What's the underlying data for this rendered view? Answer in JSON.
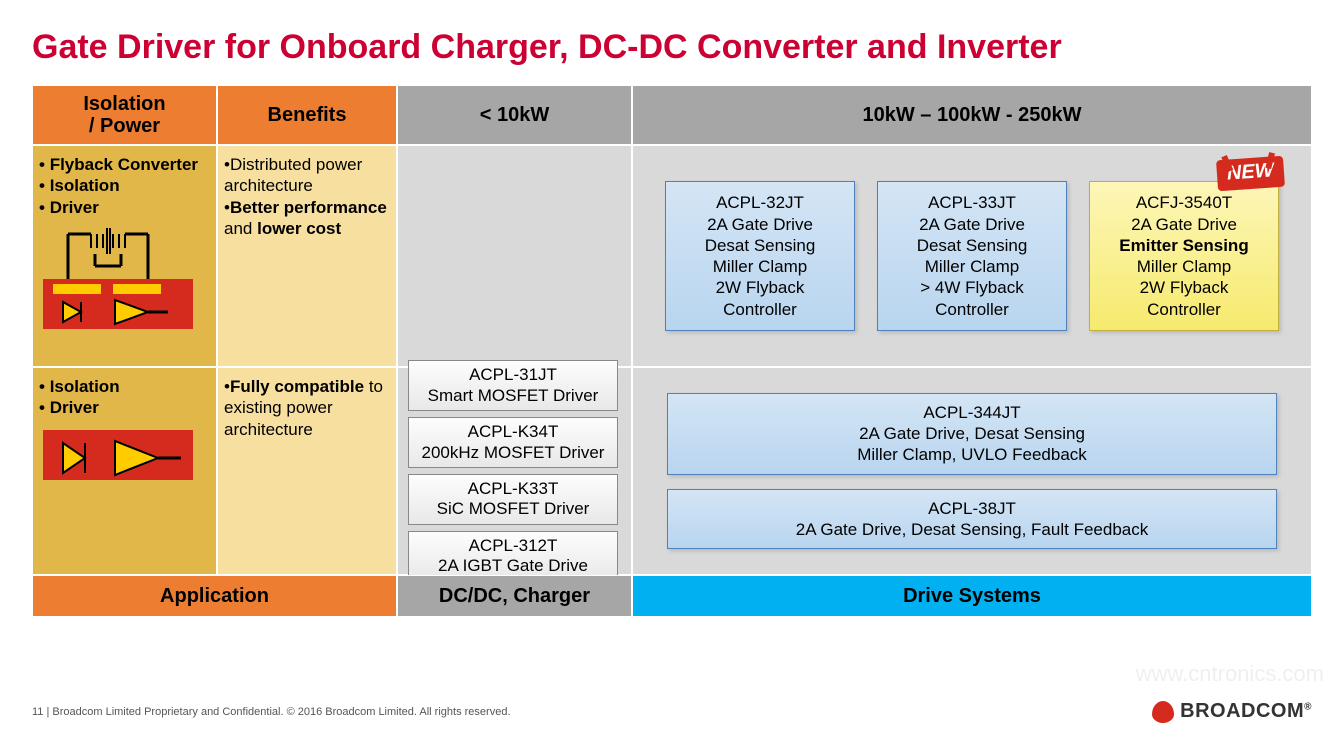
{
  "colors": {
    "title": "#cc0033",
    "hdr_orange": "#ed7d31",
    "hdr_grey": "#a6a6a6",
    "row_left": "#e2b74a",
    "row_benefit": "#f7dfa0",
    "row_grey": "#d9d9d9",
    "footer_blue": "#00b0f0",
    "new_red": "#d52b1e"
  },
  "title": "Gate Driver for Onboard Charger, DC-DC Converter and Inverter",
  "headers": {
    "col1a": "Isolation",
    "col1b": "/ Power",
    "col2": "Benefits",
    "col3": "< 10kW",
    "col4": "10kW – 100kW - 250kW"
  },
  "row1": {
    "left": [
      "Flyback Converter",
      "Isolation",
      "Driver"
    ],
    "benefits_html": "•Distributed power architecture<br>•<b>Better performance</b> and <b>lower cost</b>",
    "boxes": [
      {
        "lines": [
          "ACPL-32JT",
          "2A Gate Drive",
          "Desat Sensing",
          "Miller Clamp",
          "2W Flyback",
          "Controller"
        ],
        "variant": "blue"
      },
      {
        "lines": [
          "ACPL-33JT",
          "2A Gate Drive",
          "Desat Sensing",
          "Miller Clamp",
          "> 4W Flyback",
          "Controller"
        ],
        "variant": "blue"
      },
      {
        "lines_html": "ACFJ-3540T<br>2A Gate Drive<br><b>Emitter Sensing</b><br>Miller Clamp<br>2W Flyback<br>Controller",
        "variant": "yellow",
        "new": true
      }
    ]
  },
  "row2": {
    "left": [
      "Isolation",
      "Driver"
    ],
    "benefits_html": "•<b>Fully compatible</b> to existing power architecture",
    "small_boxes": [
      {
        "l1": "ACPL-31JT",
        "l2": "Smart MOSFET Driver"
      },
      {
        "l1": "ACPL-K34T",
        "l2": "200kHz MOSFET Driver"
      },
      {
        "l1": "ACPL-K33T",
        "l2": "SiC MOSFET Driver"
      },
      {
        "l1": "ACPL-312T",
        "l2": "2A IGBT Gate Drive"
      }
    ],
    "wide_boxes": [
      {
        "lines": [
          "ACPL-344JT",
          "2A Gate Drive, Desat Sensing",
          "Miller Clamp, UVLO Feedback"
        ]
      },
      {
        "lines": [
          "ACPL-38JT",
          "2A Gate Drive, Desat  Sensing, Fault Feedback"
        ]
      }
    ]
  },
  "footers": {
    "c12": "Application",
    "c3": "DC/DC, Charger",
    "c4": "Drive Systems"
  },
  "new_label": "NEW",
  "page_footer": "11    |    Broadcom Limited Proprietary and Confidential.  © 2016 Broadcom Limited.  All rights reserved.",
  "logo_text": "BROADCOM",
  "logo_suffix": "®",
  "watermark": "www.cntronics.com"
}
